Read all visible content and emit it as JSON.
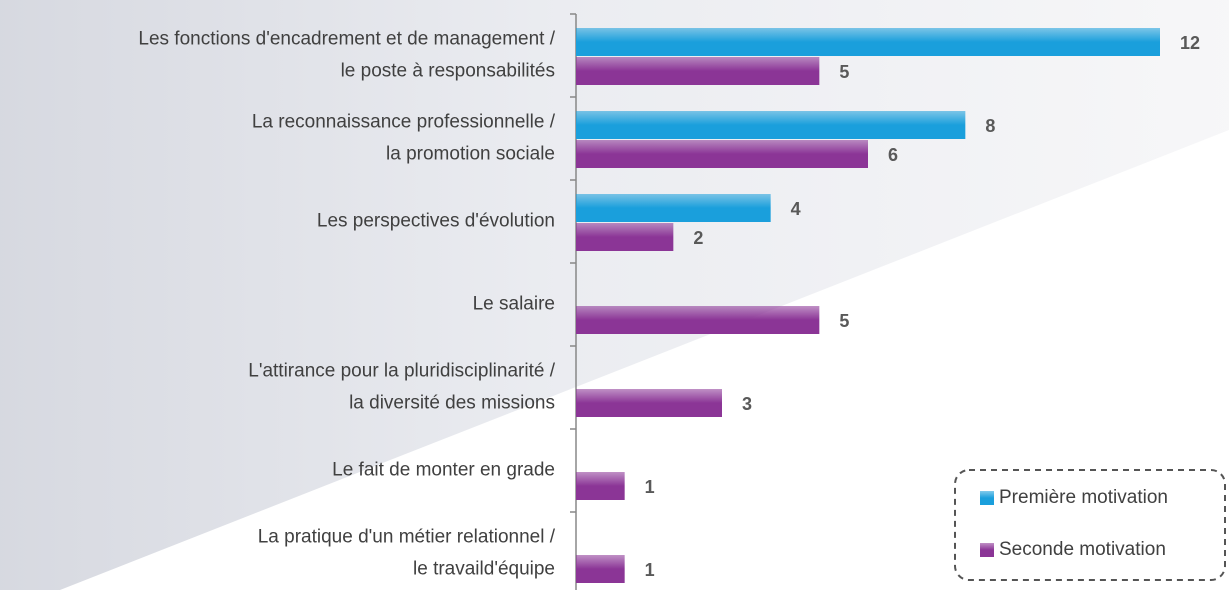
{
  "chart_data": {
    "type": "bar",
    "orientation": "horizontal",
    "categories": [
      [
        "Les fonctions d'encadrement et de management /",
        "le poste à responsabilités"
      ],
      [
        "La reconnaissance professionnelle /",
        "la promotion sociale"
      ],
      [
        "Les perspectives d'évolution"
      ],
      [
        "Le salaire"
      ],
      [
        "L'attirance pour la pluridisciplinarité /",
        "la diversité des missions"
      ],
      [
        "Le fait de monter en grade"
      ],
      [
        "La pratique d'un métier relationnel /",
        "le travaild'équipe"
      ]
    ],
    "series": [
      {
        "name": "Première motivation",
        "color": "#1a9fdc",
        "values": [
          12,
          8,
          4,
          null,
          null,
          null,
          null
        ]
      },
      {
        "name": "Seconde motivation",
        "color": "#8b3596",
        "values": [
          5,
          6,
          2,
          5,
          3,
          1,
          1
        ]
      }
    ],
    "legend": "bottom-right"
  }
}
